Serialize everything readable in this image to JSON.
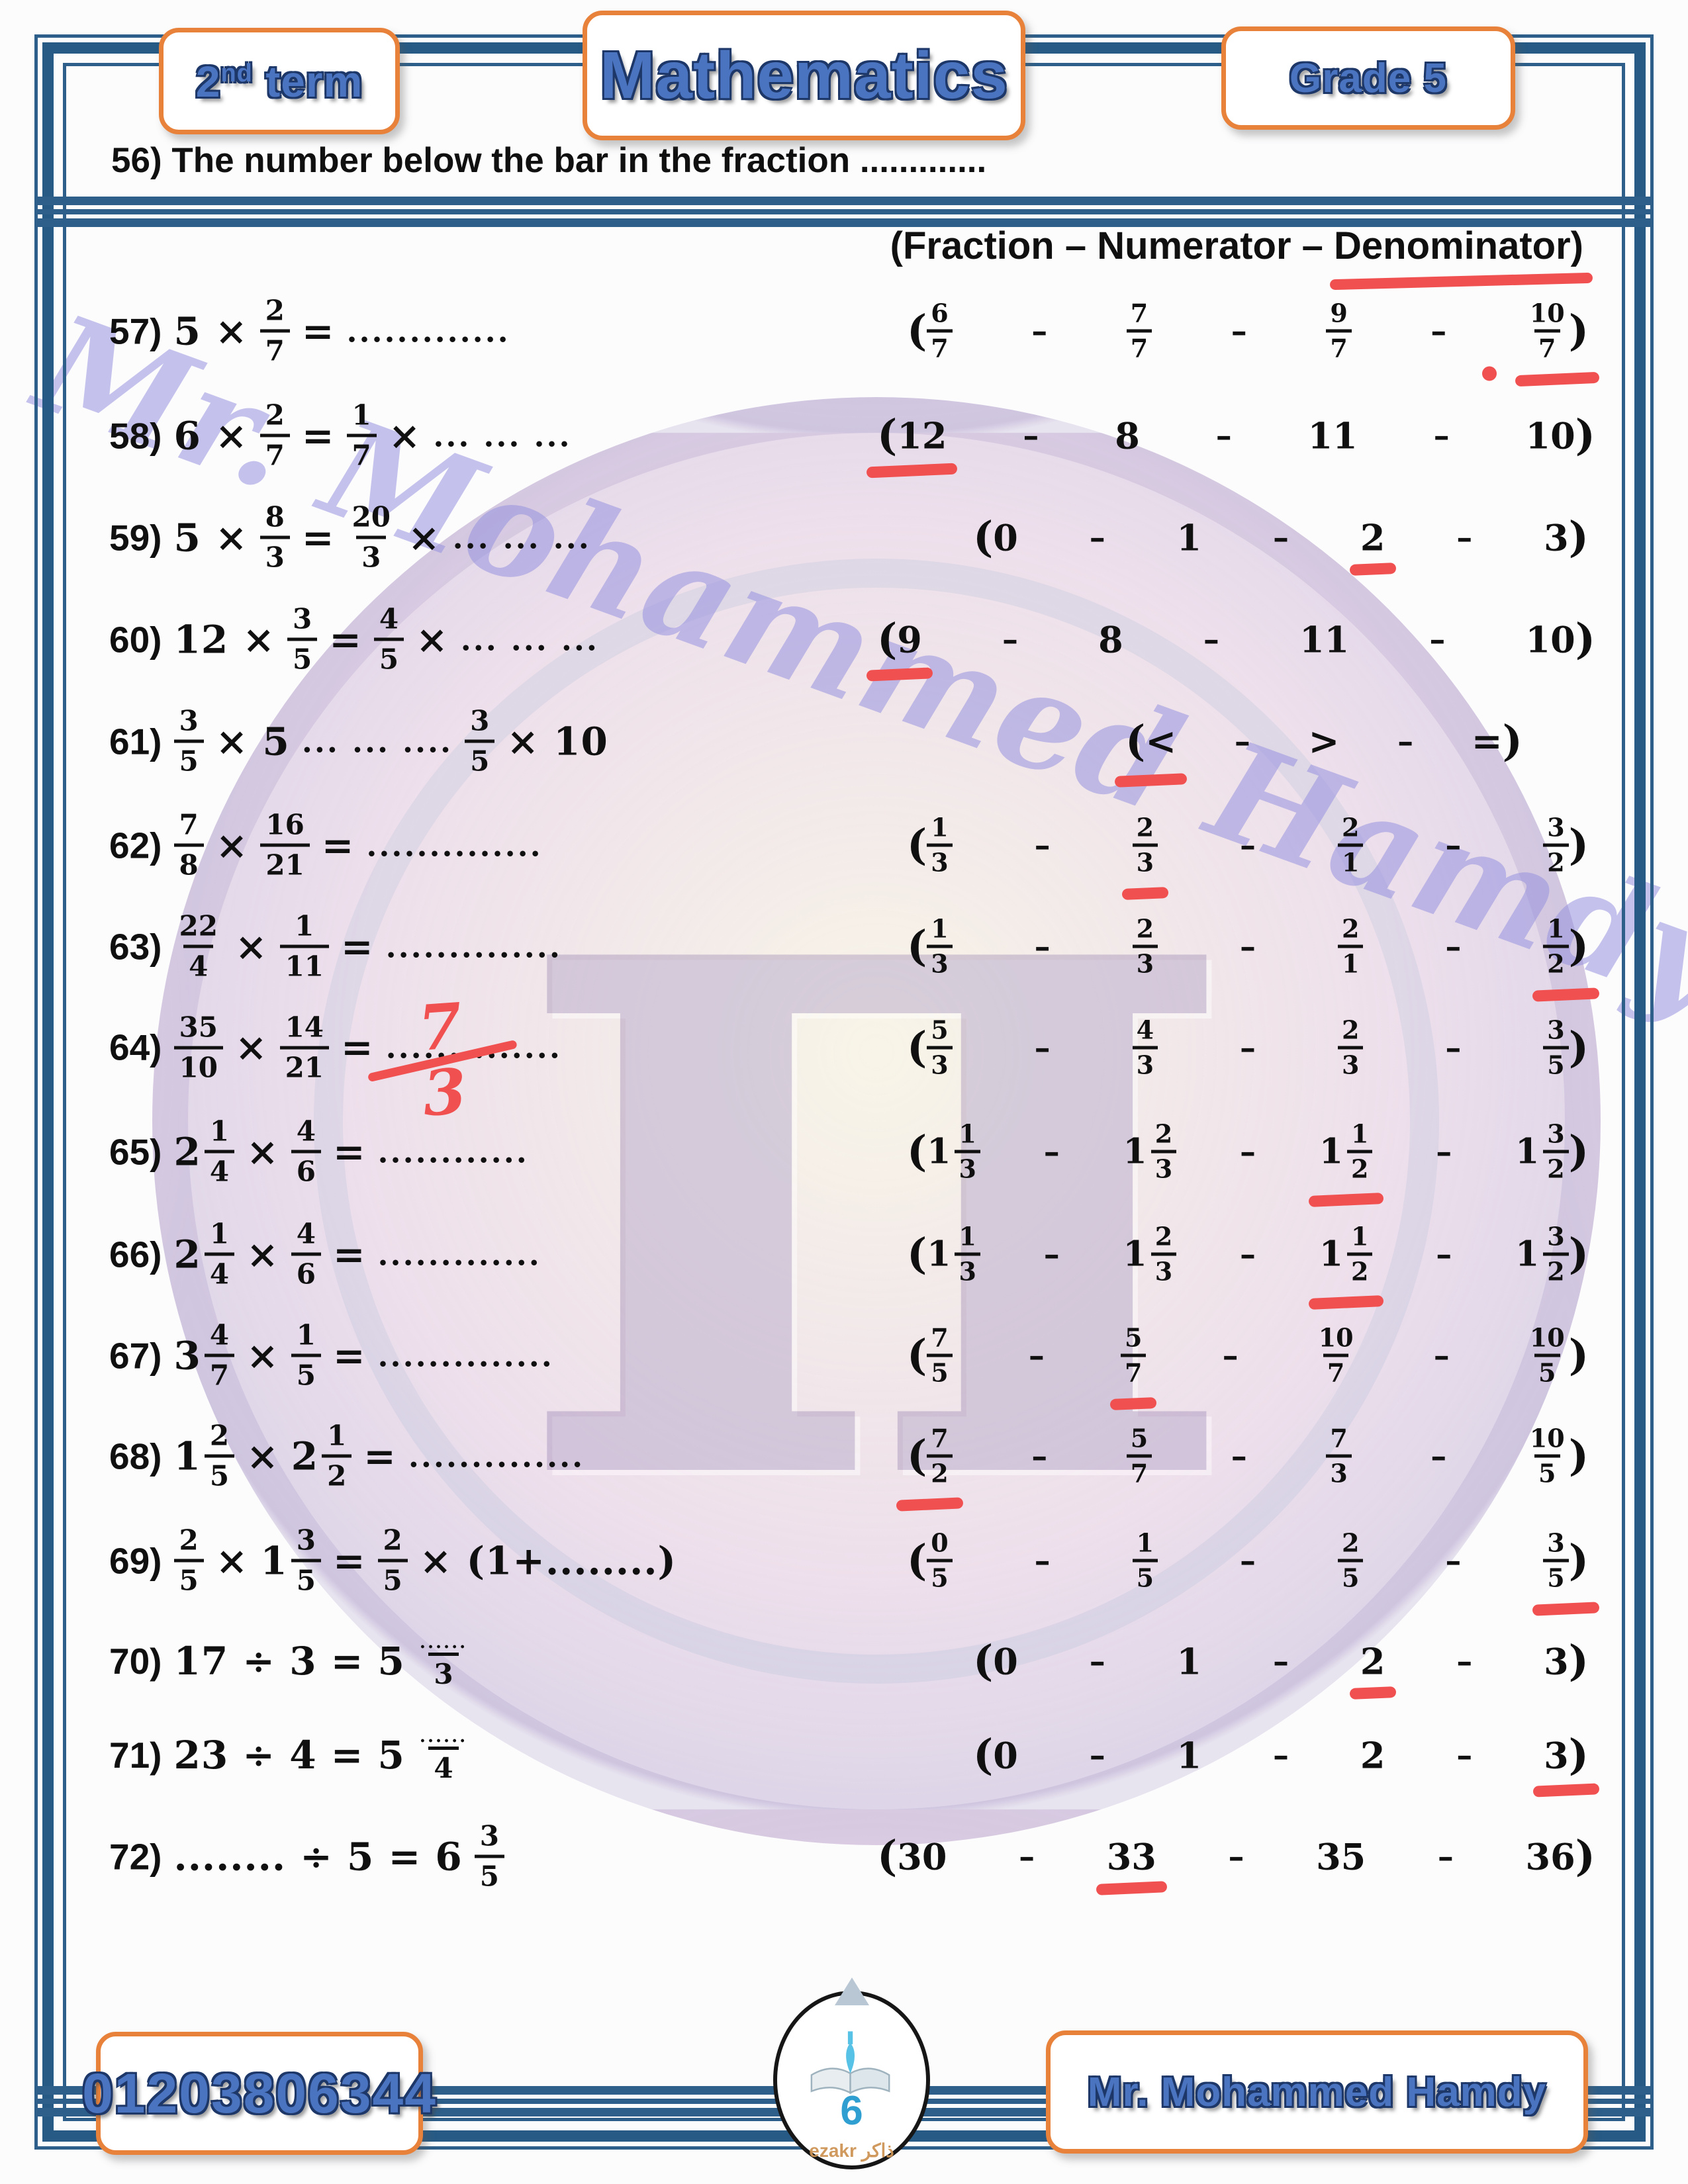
{
  "header": {
    "left_base": "2",
    "left_sup": "nd",
    "left_rest": " term",
    "center": "Mathematics",
    "right": "Grade 5"
  },
  "intro": {
    "number": "56)",
    "text": "The number below the bar in the fraction .............",
    "choices_prefix": "(Fraction – Numerator – ",
    "choices_underlined": "Denominator)"
  },
  "questions": [
    {
      "num": "57",
      "expr": [
        {
          "t": "txt",
          "v": "5 ×"
        },
        {
          "t": "frac",
          "n": "2",
          "d": "7"
        },
        {
          "t": "txt",
          "v": "="
        },
        {
          "t": "dots",
          "v": "............."
        }
      ],
      "options": [
        {
          "t": "frac",
          "n": "6",
          "d": "7"
        },
        {
          "t": "frac",
          "n": "7",
          "d": "7"
        },
        {
          "t": "frac",
          "n": "9",
          "d": "7"
        },
        {
          "t": "frac",
          "n": "10",
          "d": "7"
        }
      ],
      "answer": 3,
      "mark_dot": true
    },
    {
      "num": "58",
      "expr": [
        {
          "t": "txt",
          "v": "6 ×"
        },
        {
          "t": "frac",
          "n": "2",
          "d": "7"
        },
        {
          "t": "txt",
          "v": "="
        },
        {
          "t": "frac",
          "n": "1",
          "d": "7"
        },
        {
          "t": "txt",
          "v": "×"
        },
        {
          "t": "dots",
          "v": "... ... ..."
        }
      ],
      "options": [
        {
          "t": "num",
          "v": "12"
        },
        {
          "t": "num",
          "v": "8"
        },
        {
          "t": "num",
          "v": "11"
        },
        {
          "t": "num",
          "v": "10"
        }
      ],
      "answer": 0
    },
    {
      "num": "59",
      "expr": [
        {
          "t": "txt",
          "v": "5 ×"
        },
        {
          "t": "frac",
          "n": "8",
          "d": "3"
        },
        {
          "t": "txt",
          "v": "="
        },
        {
          "t": "frac",
          "n": "20",
          "d": "3"
        },
        {
          "t": "txt",
          "v": "×"
        },
        {
          "t": "dots",
          "v": "... ... ..."
        }
      ],
      "options": [
        {
          "t": "num",
          "v": "0"
        },
        {
          "t": "num",
          "v": "1"
        },
        {
          "t": "num",
          "v": "2"
        },
        {
          "t": "num",
          "v": "3"
        }
      ],
      "answer": 2
    },
    {
      "num": "60",
      "expr": [
        {
          "t": "txt",
          "v": "12 ×"
        },
        {
          "t": "frac",
          "n": "3",
          "d": "5"
        },
        {
          "t": "txt",
          "v": "="
        },
        {
          "t": "frac",
          "n": "4",
          "d": "5"
        },
        {
          "t": "txt",
          "v": "×"
        },
        {
          "t": "dots",
          "v": "... ... ..."
        }
      ],
      "options": [
        {
          "t": "num",
          "v": "9"
        },
        {
          "t": "num",
          "v": "8"
        },
        {
          "t": "num",
          "v": "11"
        },
        {
          "t": "num",
          "v": "10"
        }
      ],
      "answer": 0
    },
    {
      "num": "61",
      "expr": [
        {
          "t": "frac",
          "n": "3",
          "d": "5"
        },
        {
          "t": "txt",
          "v": "× 5"
        },
        {
          "t": "dots",
          "v": "... ... ...."
        },
        {
          "t": "frac",
          "n": "3",
          "d": "5"
        },
        {
          "t": "txt",
          "v": "× 10"
        }
      ],
      "options": [
        {
          "t": "sym",
          "v": "<"
        },
        {
          "t": "sym",
          "v": ">"
        },
        {
          "t": "sym",
          "v": "="
        }
      ],
      "answer": 0
    },
    {
      "num": "62",
      "expr": [
        {
          "t": "frac",
          "n": "7",
          "d": "8"
        },
        {
          "t": "txt",
          "v": "×"
        },
        {
          "t": "frac",
          "n": "16",
          "d": "21"
        },
        {
          "t": "txt",
          "v": "="
        },
        {
          "t": "dots",
          "v": ".............."
        }
      ],
      "options": [
        {
          "t": "frac",
          "n": "1",
          "d": "3"
        },
        {
          "t": "frac",
          "n": "2",
          "d": "3"
        },
        {
          "t": "frac",
          "n": "2",
          "d": "1"
        },
        {
          "t": "frac",
          "n": "3",
          "d": "2"
        }
      ],
      "answer": 1
    },
    {
      "num": "63",
      "expr": [
        {
          "t": "frac",
          "n": "22",
          "d": "4"
        },
        {
          "t": "txt",
          "v": "×"
        },
        {
          "t": "frac",
          "n": "1",
          "d": "11"
        },
        {
          "t": "txt",
          "v": "="
        },
        {
          "t": "dots",
          "v": ".............."
        }
      ],
      "options": [
        {
          "t": "frac",
          "n": "1",
          "d": "3"
        },
        {
          "t": "frac",
          "n": "2",
          "d": "3"
        },
        {
          "t": "frac",
          "n": "2",
          "d": "1"
        },
        {
          "t": "frac",
          "n": "1",
          "d": "2"
        }
      ],
      "answer": 3
    },
    {
      "num": "64",
      "expr": [
        {
          "t": "frac",
          "n": "35",
          "d": "10"
        },
        {
          "t": "txt",
          "v": "×"
        },
        {
          "t": "frac",
          "n": "14",
          "d": "21"
        },
        {
          "t": "txt",
          "v": "="
        },
        {
          "t": "dots",
          "v": ".............."
        }
      ],
      "options": [
        {
          "t": "frac",
          "n": "5",
          "d": "3"
        },
        {
          "t": "frac",
          "n": "4",
          "d": "3"
        },
        {
          "t": "frac",
          "n": "2",
          "d": "3"
        },
        {
          "t": "frac",
          "n": "3",
          "d": "5"
        }
      ],
      "answer": -1,
      "handwritten": {
        "n": "7",
        "d": "3"
      }
    },
    {
      "num": "65",
      "expr": [
        {
          "t": "mixed",
          "w": "2",
          "n": "1",
          "d": "4"
        },
        {
          "t": "txt",
          "v": "×"
        },
        {
          "t": "frac",
          "n": "4",
          "d": "6"
        },
        {
          "t": "txt",
          "v": "="
        },
        {
          "t": "dots",
          "v": "............"
        }
      ],
      "options": [
        {
          "t": "mixed",
          "w": "1",
          "n": "1",
          "d": "3"
        },
        {
          "t": "mixed",
          "w": "1",
          "n": "2",
          "d": "3"
        },
        {
          "t": "mixed",
          "w": "1",
          "n": "1",
          "d": "2"
        },
        {
          "t": "mixed",
          "w": "1",
          "n": "3",
          "d": "2"
        }
      ],
      "answer": 2
    },
    {
      "num": "66",
      "expr": [
        {
          "t": "mixed",
          "w": "2",
          "n": "1",
          "d": "4"
        },
        {
          "t": "txt",
          "v": "×"
        },
        {
          "t": "frac",
          "n": "4",
          "d": "6"
        },
        {
          "t": "txt",
          "v": "="
        },
        {
          "t": "dots",
          "v": "............."
        }
      ],
      "options": [
        {
          "t": "mixed",
          "w": "1",
          "n": "1",
          "d": "3"
        },
        {
          "t": "mixed",
          "w": "1",
          "n": "2",
          "d": "3"
        },
        {
          "t": "mixed",
          "w": "1",
          "n": "1",
          "d": "2"
        },
        {
          "t": "mixed",
          "w": "1",
          "n": "3",
          "d": "2"
        }
      ],
      "answer": 2
    },
    {
      "num": "67",
      "expr": [
        {
          "t": "mixed",
          "w": "3",
          "n": "4",
          "d": "7"
        },
        {
          "t": "txt",
          "v": "×"
        },
        {
          "t": "frac",
          "n": "1",
          "d": "5"
        },
        {
          "t": "txt",
          "v": "="
        },
        {
          "t": "dots",
          "v": ".............."
        }
      ],
      "options": [
        {
          "t": "frac",
          "n": "7",
          "d": "5"
        },
        {
          "t": "frac",
          "n": "5",
          "d": "7"
        },
        {
          "t": "frac",
          "n": "10",
          "d": "7"
        },
        {
          "t": "frac",
          "n": "10",
          "d": "5"
        }
      ],
      "answer": 1
    },
    {
      "num": "68",
      "expr": [
        {
          "t": "mixed",
          "w": "1",
          "n": "2",
          "d": "5"
        },
        {
          "t": "txt",
          "v": "×"
        },
        {
          "t": "mixed",
          "w": "2",
          "n": "1",
          "d": "2"
        },
        {
          "t": "txt",
          "v": "="
        },
        {
          "t": "dots",
          "v": ".............."
        }
      ],
      "options": [
        {
          "t": "frac",
          "n": "7",
          "d": "2"
        },
        {
          "t": "frac",
          "n": "5",
          "d": "7"
        },
        {
          "t": "frac",
          "n": "7",
          "d": "3"
        },
        {
          "t": "frac",
          "n": "10",
          "d": "5"
        }
      ],
      "answer": 0
    },
    {
      "num": "69",
      "expr": [
        {
          "t": "frac",
          "n": "2",
          "d": "5"
        },
        {
          "t": "txt",
          "v": "×"
        },
        {
          "t": "mixed",
          "w": "1",
          "n": "3",
          "d": "5"
        },
        {
          "t": "txt",
          "v": "="
        },
        {
          "t": "frac",
          "n": "2",
          "d": "5"
        },
        {
          "t": "txt",
          "v": "× (1+........)"
        }
      ],
      "options": [
        {
          "t": "frac",
          "n": "0",
          "d": "5"
        },
        {
          "t": "frac",
          "n": "1",
          "d": "5"
        },
        {
          "t": "frac",
          "n": "2",
          "d": "5"
        },
        {
          "t": "frac",
          "n": "3",
          "d": "5"
        }
      ],
      "answer": 3
    },
    {
      "num": "70",
      "expr": [
        {
          "t": "txt",
          "v": "17 ÷ 3 = 5"
        },
        {
          "t": "fracdots",
          "n": "......",
          "d": "3"
        }
      ],
      "options": [
        {
          "t": "num",
          "v": "0"
        },
        {
          "t": "num",
          "v": "1"
        },
        {
          "t": "num",
          "v": "2"
        },
        {
          "t": "num",
          "v": "3"
        }
      ],
      "answer": 2
    },
    {
      "num": "71",
      "expr": [
        {
          "t": "txt",
          "v": "23 ÷ 4 = 5"
        },
        {
          "t": "fracdots",
          "n": "......",
          "d": "4"
        }
      ],
      "options": [
        {
          "t": "num",
          "v": "0"
        },
        {
          "t": "num",
          "v": "1"
        },
        {
          "t": "num",
          "v": "2"
        },
        {
          "t": "num",
          "v": "3"
        }
      ],
      "answer": 3
    },
    {
      "num": "72",
      "expr": [
        {
          "t": "txt",
          "v": "........ ÷ 5 = 6"
        },
        {
          "t": "frac",
          "n": "3",
          "d": "5"
        }
      ],
      "options": [
        {
          "t": "num",
          "v": "30"
        },
        {
          "t": "num",
          "v": "33"
        },
        {
          "t": "num",
          "v": "35"
        },
        {
          "t": "num",
          "v": "36"
        }
      ],
      "answer": 1
    }
  ],
  "footer": {
    "phone": "01203806344",
    "page_number": "6",
    "teacher": "Mr. Mohammed Hamdy",
    "logo_text": "ezakr ذاكر"
  },
  "watermark": {
    "diagonal_text": "Mr. Mohammed Hamdy",
    "pi": "π"
  },
  "colors": {
    "frame_blue": "#2d5f8a",
    "badge_orange": "#e8823b",
    "badge_text_blue": "#4a73c0",
    "mark_red": "#f15050"
  }
}
